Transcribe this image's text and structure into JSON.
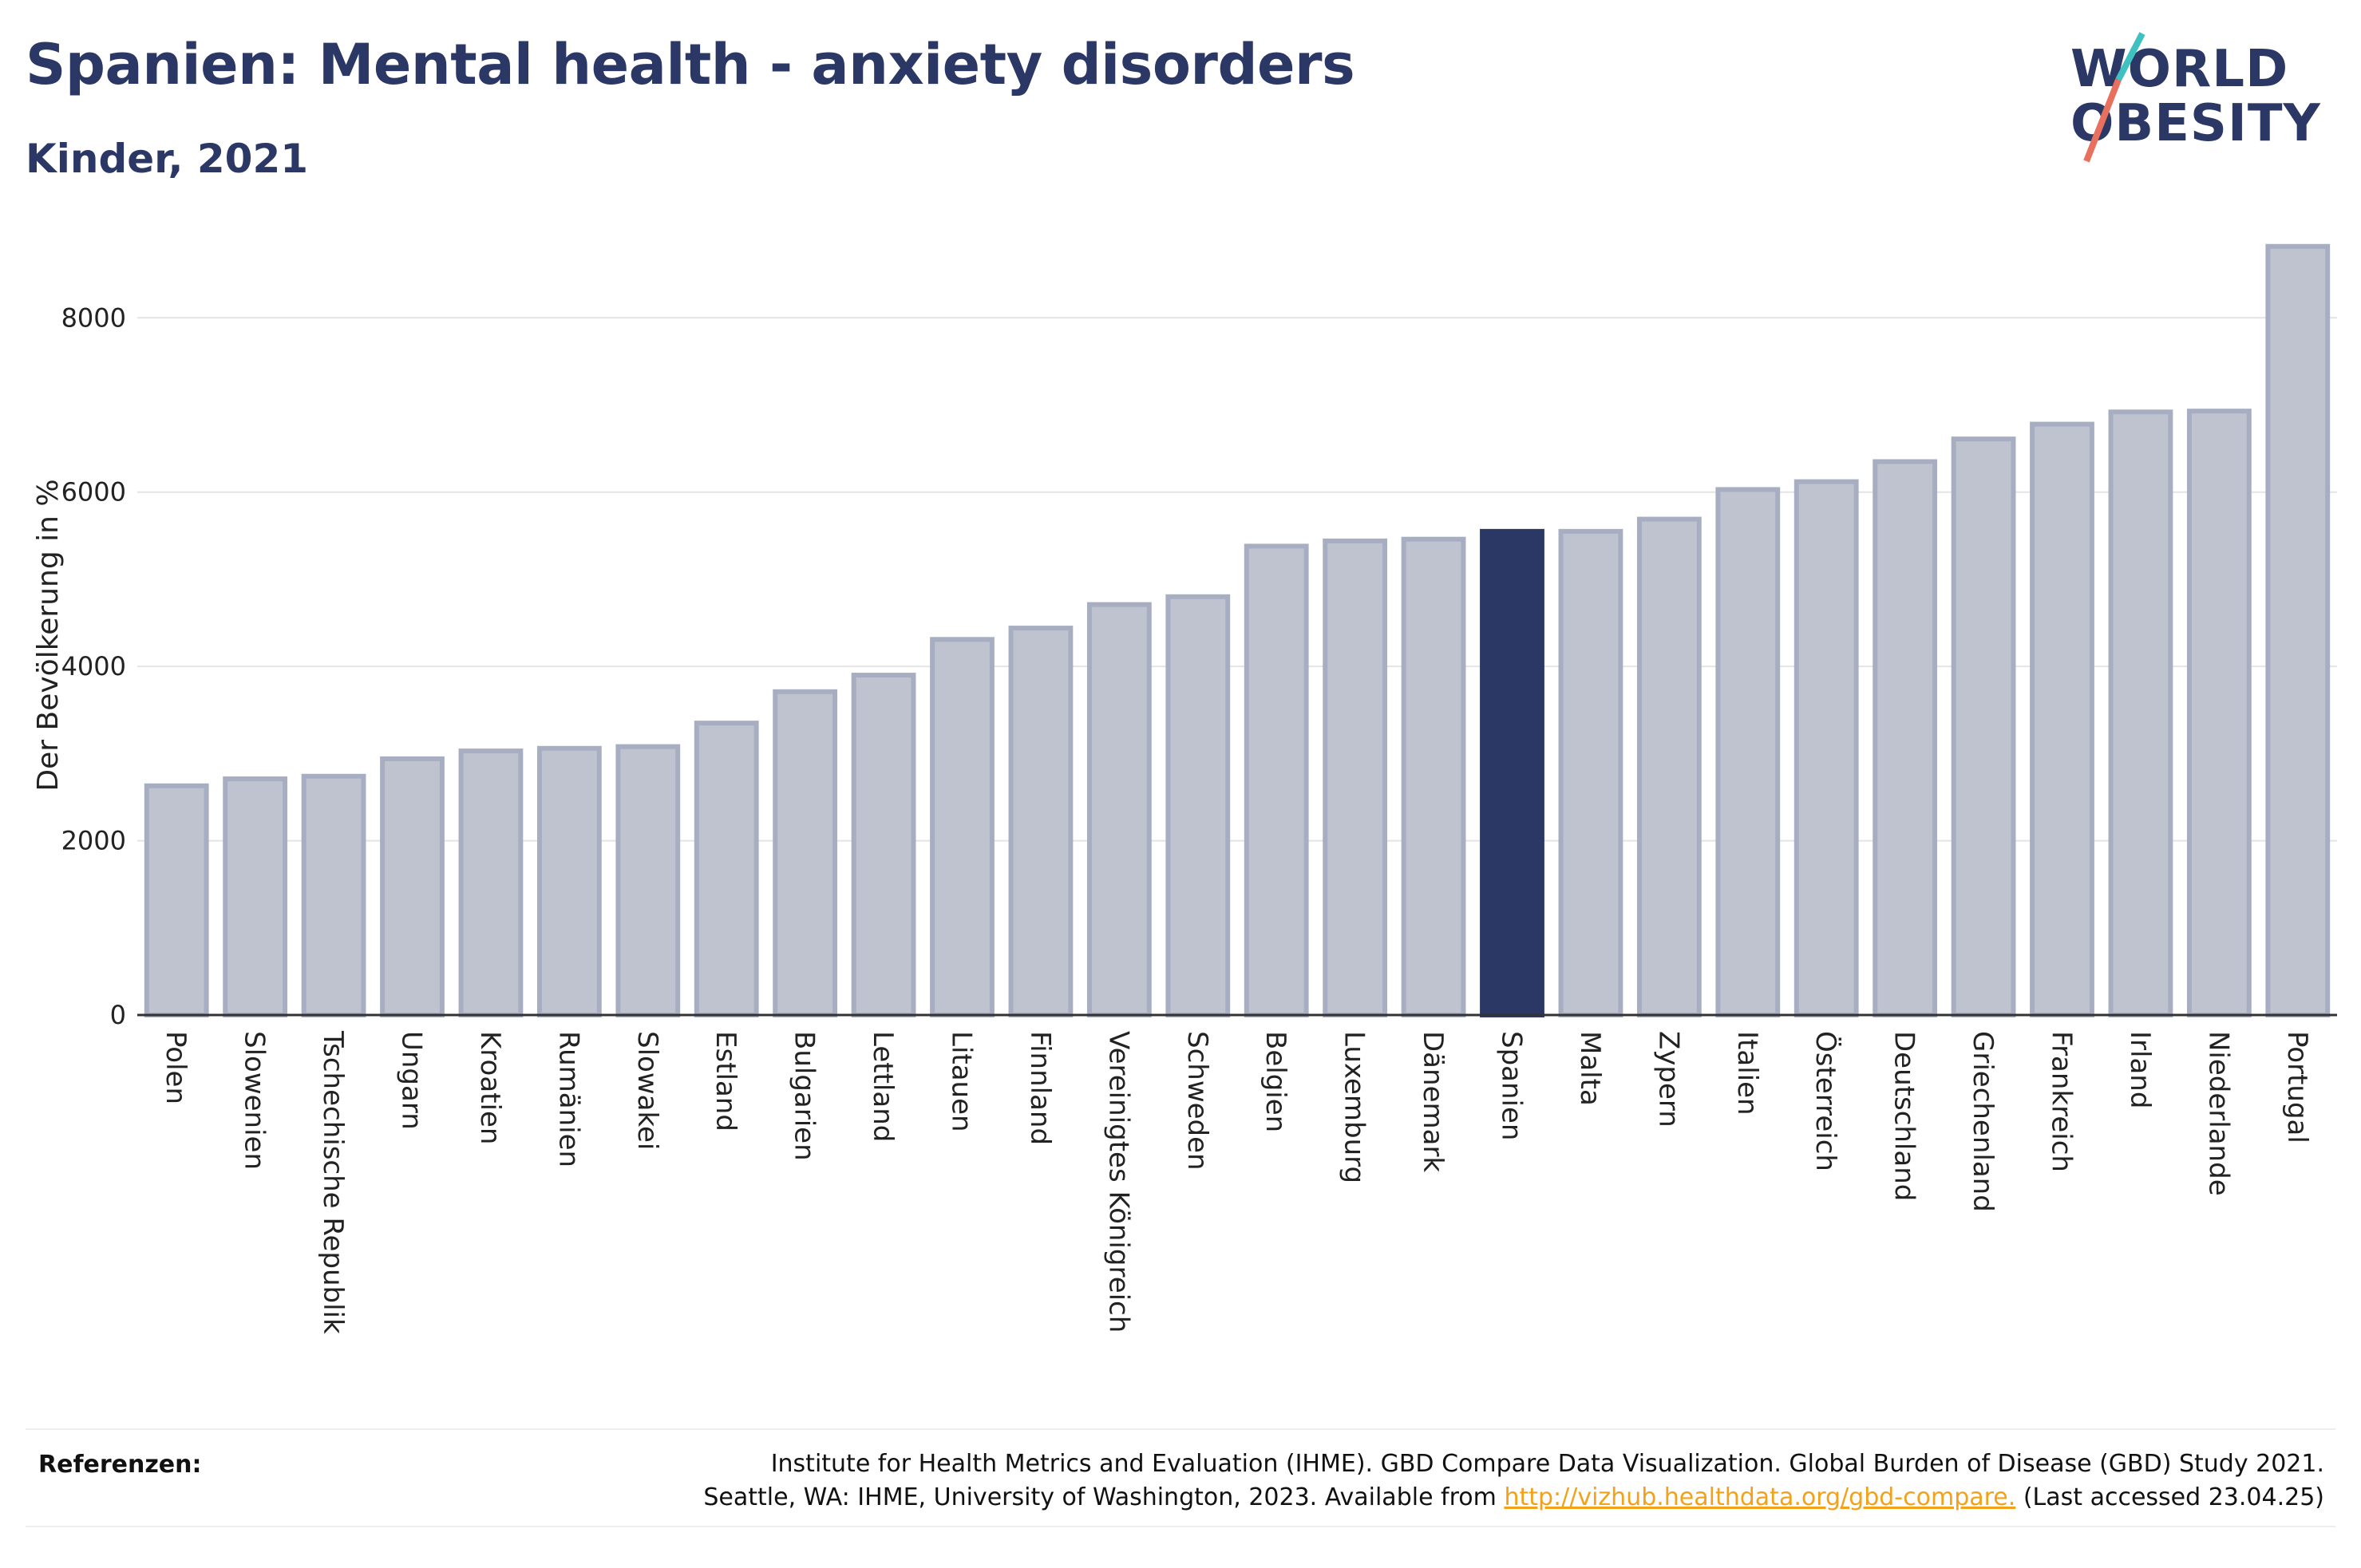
{
  "header": {
    "title": "Spanien: Mental health - anxiety disorders",
    "subtitle": "Kinder, 2021"
  },
  "logo": {
    "line1": "WORLD",
    "line2": "OBESITY",
    "slash_colors": [
      "#3ec1c0",
      "#e8705f"
    ]
  },
  "colors": {
    "bar": "#bfc3d0",
    "bar_stroke": "#a8aec2",
    "highlight": "#2b3765",
    "text_dark": "#2b3765"
  },
  "chart_data": {
    "type": "bar",
    "ylabel": "Der Bevölkerung in %",
    "ylim": [
      0,
      8900
    ],
    "yticks": [
      0,
      2000,
      4000,
      6000,
      8000
    ],
    "grid": true,
    "highlight": "Spanien",
    "categories": [
      "Polen",
      "Slowenien",
      "Tschechische Republik",
      "Ungarn",
      "Kroatien",
      "Rumänien",
      "Slowakei",
      "Estland",
      "Bulgarien",
      "Lettland",
      "Litauen",
      "Finnland",
      "Vereinigtes Königreich",
      "Schweden",
      "Belgien",
      "Luxemburg",
      "Dänemark",
      "Spanien",
      "Malta",
      "Zypern",
      "Italien",
      "Österreich",
      "Deutschland",
      "Griechenland",
      "Frankreich",
      "Irland",
      "Niederlande",
      "Portugal"
    ],
    "values": [
      2630,
      2710,
      2740,
      2940,
      3030,
      3060,
      3080,
      3350,
      3710,
      3900,
      4310,
      4440,
      4710,
      4800,
      5380,
      5440,
      5460,
      5550,
      5550,
      5690,
      6030,
      6120,
      6350,
      6610,
      6780,
      6920,
      6930,
      8820
    ]
  },
  "references": {
    "label": "Referenzen:",
    "line1": "Institute for Health Metrics and Evaluation (IHME). GBD Compare Data Visualization. Global Burden of Disease (GBD) Study 2021.",
    "line2_prefix": "Seattle, WA: IHME, University of Washington, 2023. Available from",
    "link": "http://vizhub.healthdata.org/gbd-compare.",
    "line2_suffix": "(Last accessed 23.04.25)"
  }
}
